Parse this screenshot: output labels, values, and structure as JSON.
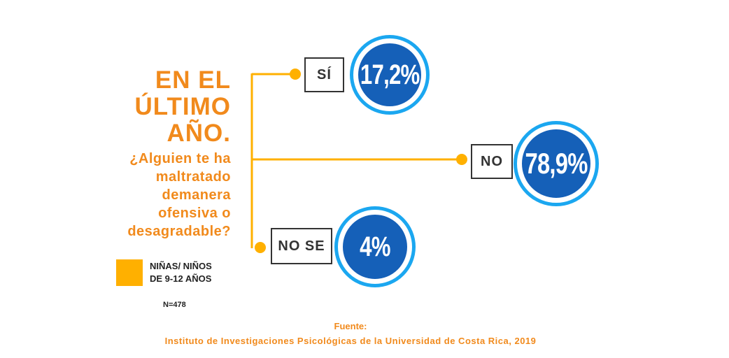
{
  "heading": {
    "lines": [
      "EN EL",
      "ÚLTIMO",
      "AÑO."
    ],
    "question_lines": [
      "¿Alguien te ha",
      "maltratado",
      "demanera",
      "ofensiva o",
      "desagradable?"
    ]
  },
  "legend": {
    "color": "#FFB000",
    "line1": "NIÑAS/ NIÑOS",
    "line2": "DE 9-12 AÑOS"
  },
  "sample": "N=478",
  "answers": [
    {
      "label": "SÍ",
      "value": "17,2%"
    },
    {
      "label": "NO",
      "value": "78,9%"
    },
    {
      "label": "NO SE",
      "value": "4%"
    }
  ],
  "source": {
    "title": "Fuente:",
    "text": "Instituto de Investigaciones Psicológicas de la Universidad de Costa Rica, 2019"
  },
  "colors": {
    "accent_orange": "#F18A1C",
    "connector_yellow": "#FFB000",
    "circle_fill": "#1560B8",
    "circle_ring": "#1BA7F0"
  }
}
